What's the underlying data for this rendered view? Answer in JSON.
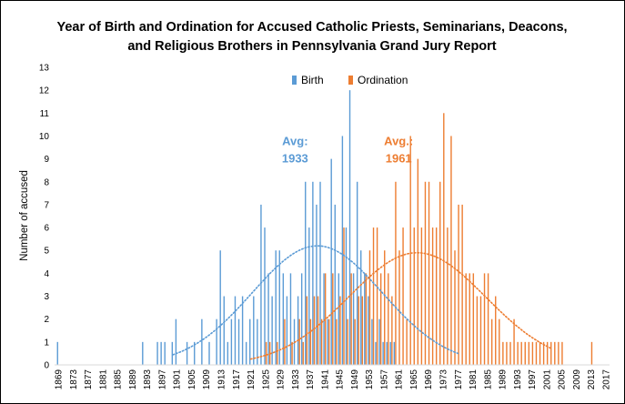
{
  "chart_data": {
    "type": "bar",
    "title_lines": [
      "Year of Birth and Ordination for Accused Catholic Priests, Seminarians, Deacons,",
      "and Religious Brothers in Pennsylvania Grand Jury Report"
    ],
    "xlabel": "",
    "ylabel": "Number  of accused",
    "ylim": [
      0,
      13
    ],
    "xlim": [
      1868,
      2018
    ],
    "grid": false,
    "legend_position": "top-center",
    "x_tick_labels": [
      1869,
      1873,
      1877,
      1881,
      1885,
      1889,
      1893,
      1897,
      1901,
      1905,
      1909,
      1913,
      1917,
      1921,
      1925,
      1929,
      1933,
      1937,
      1941,
      1945,
      1949,
      1953,
      1957,
      1961,
      1965,
      1969,
      1973,
      1977,
      1981,
      1985,
      1989,
      1993,
      1997,
      2001,
      2005,
      2009,
      2013,
      2017
    ],
    "y_tick_labels": [
      0,
      1,
      2,
      3,
      4,
      5,
      6,
      7,
      8,
      9,
      10,
      11,
      12,
      13
    ],
    "series": [
      {
        "name": "Birth",
        "color": "#5b9bd5",
        "x": [
          1869,
          1892,
          1896,
          1897,
          1898,
          1900,
          1901,
          1904,
          1906,
          1908,
          1910,
          1912,
          1913,
          1914,
          1915,
          1916,
          1917,
          1918,
          1919,
          1920,
          1921,
          1922,
          1923,
          1924,
          1925,
          1926,
          1927,
          1928,
          1929,
          1930,
          1931,
          1932,
          1933,
          1934,
          1935,
          1936,
          1937,
          1938,
          1939,
          1940,
          1941,
          1942,
          1943,
          1944,
          1945,
          1946,
          1947,
          1948,
          1949,
          1950,
          1951,
          1952,
          1953,
          1954,
          1955,
          1956,
          1957,
          1958,
          1959,
          1960
        ],
        "values": [
          1,
          1,
          1,
          1,
          1,
          1,
          2,
          1,
          1,
          2,
          1,
          2,
          5,
          3,
          1,
          2,
          3,
          2,
          3,
          1,
          2,
          3,
          2,
          7,
          6,
          4,
          3,
          5,
          5,
          4,
          3,
          4,
          2,
          3,
          4,
          8,
          6,
          8,
          7,
          8,
          4,
          2,
          9,
          7,
          4,
          10,
          6,
          12,
          4,
          8,
          5,
          4,
          3,
          2,
          1,
          2,
          1,
          1,
          1,
          1
        ]
      },
      {
        "name": "Ordination",
        "color": "#ed7d31",
        "x": [
          1925,
          1926,
          1928,
          1930,
          1932,
          1934,
          1935,
          1936,
          1937,
          1938,
          1939,
          1940,
          1941,
          1942,
          1943,
          1944,
          1945,
          1946,
          1947,
          1948,
          1949,
          1950,
          1951,
          1952,
          1953,
          1954,
          1955,
          1956,
          1957,
          1958,
          1959,
          1960,
          1961,
          1962,
          1963,
          1964,
          1965,
          1966,
          1967,
          1968,
          1969,
          1970,
          1971,
          1972,
          1973,
          1974,
          1975,
          1976,
          1977,
          1978,
          1979,
          1980,
          1981,
          1982,
          1983,
          1984,
          1985,
          1986,
          1987,
          1988,
          1989,
          1990,
          1991,
          1992,
          1993,
          1994,
          1995,
          1996,
          1997,
          1998,
          1999,
          2000,
          2001,
          2002,
          2003,
          2004,
          2005,
          2013
        ],
        "values": [
          1,
          1,
          1,
          2,
          1,
          2,
          1,
          3,
          2,
          3,
          3,
          2,
          4,
          2,
          4,
          2,
          3,
          6,
          2,
          4,
          2,
          3,
          3,
          4,
          5,
          6,
          6,
          4,
          5,
          4,
          3,
          8,
          5,
          6,
          2,
          10,
          6,
          9,
          6,
          8,
          8,
          6,
          6,
          8,
          11,
          6,
          10,
          5,
          7,
          7,
          4,
          4,
          4,
          3,
          3,
          4,
          4,
          2,
          3,
          2,
          1,
          1,
          1,
          2,
          1,
          1,
          1,
          1,
          1,
          1,
          1,
          1,
          1,
          1,
          1,
          1,
          1,
          1
        ]
      }
    ],
    "trendlines": [
      {
        "series": "Birth",
        "color": "#5b9bd5",
        "style": "dotted",
        "peak_x": 1939,
        "peak_y": 5.2,
        "x_range": [
          1900,
          1977
        ]
      },
      {
        "series": "Ordination",
        "color": "#ed7d31",
        "style": "dotted",
        "peak_x": 1966,
        "peak_y": 4.9,
        "x_range": [
          1921,
          2002
        ]
      }
    ],
    "annotations": [
      {
        "text_lines": [
          "Avg:",
          "1933"
        ],
        "color": "#5b9bd5",
        "x": 1933,
        "y": 9.6
      },
      {
        "text_lines": [
          "Avg.:",
          "1961"
        ],
        "color": "#ed7d31",
        "x": 1961,
        "y": 9.6
      }
    ]
  }
}
